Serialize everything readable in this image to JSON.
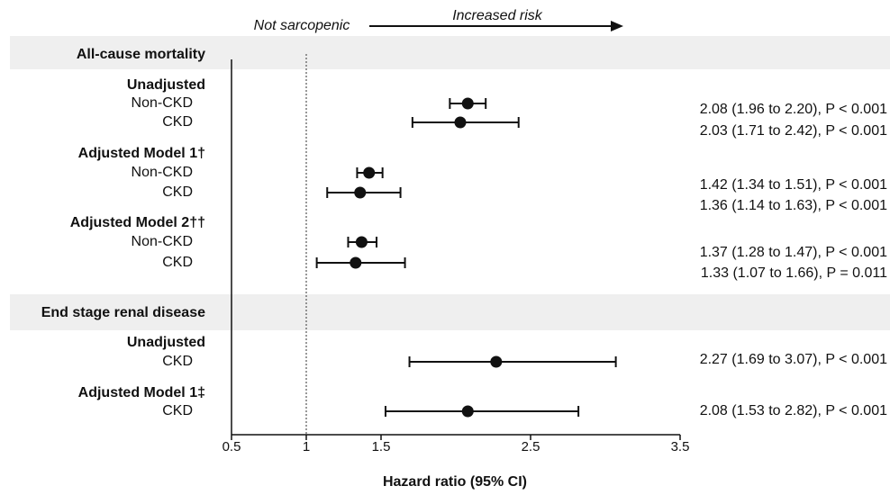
{
  "chart_data": {
    "type": "forest",
    "xlabel": "Hazard ratio (95% CI)",
    "xlim": [
      0.5,
      3.5
    ],
    "xticks": [
      "0.5",
      "1",
      "1.5",
      "2.5",
      "3.5"
    ],
    "xtick_values": [
      0.5,
      1,
      1.5,
      2.5,
      3.5
    ],
    "reference_line": 1,
    "annotations": {
      "left": "Not sarcopenic",
      "right": "Increased risk"
    },
    "sections": [
      {
        "title": "All-cause mortality",
        "groups": [
          {
            "label": "Unadjusted",
            "rows": [
              {
                "label": "Non-CKD",
                "hr": 2.08,
                "lo": 1.96,
                "hi": 2.2,
                "text": "2.08 (1.96 to 2.20), P < 0.001"
              },
              {
                "label": "CKD",
                "hr": 2.03,
                "lo": 1.71,
                "hi": 2.42,
                "text": "2.03 (1.71 to 2.42), P < 0.001"
              }
            ]
          },
          {
            "label": "Adjusted Model 1†",
            "rows": [
              {
                "label": "Non-CKD",
                "hr": 1.42,
                "lo": 1.34,
                "hi": 1.51,
                "text": "1.42 (1.34 to 1.51), P < 0.001"
              },
              {
                "label": "CKD",
                "hr": 1.36,
                "lo": 1.14,
                "hi": 1.63,
                "text": "1.36 (1.14 to 1.63), P < 0.001"
              }
            ]
          },
          {
            "label": "Adjusted Model 2††",
            "rows": [
              {
                "label": "Non-CKD",
                "hr": 1.37,
                "lo": 1.28,
                "hi": 1.47,
                "text": "1.37 (1.28 to 1.47), P < 0.001"
              },
              {
                "label": "CKD",
                "hr": 1.33,
                "lo": 1.07,
                "hi": 1.66,
                "text": "1.33 (1.07 to 1.66), P = 0.011"
              }
            ]
          }
        ]
      },
      {
        "title": "End stage renal disease",
        "groups": [
          {
            "label": "Unadjusted",
            "rows": [
              {
                "label": "CKD",
                "hr": 2.27,
                "lo": 1.69,
                "hi": 3.07,
                "text": "2.27 (1.69 to 3.07), P < 0.001"
              }
            ]
          },
          {
            "label": "Adjusted Model 1‡",
            "rows": [
              {
                "label": "CKD",
                "hr": 2.08,
                "lo": 1.53,
                "hi": 2.82,
                "text": "2.08 (1.53 to 2.82), P < 0.001"
              }
            ]
          }
        ]
      }
    ],
    "colors": {
      "band": "#efefef",
      "ink": "#111111",
      "reference": "#555555"
    }
  }
}
